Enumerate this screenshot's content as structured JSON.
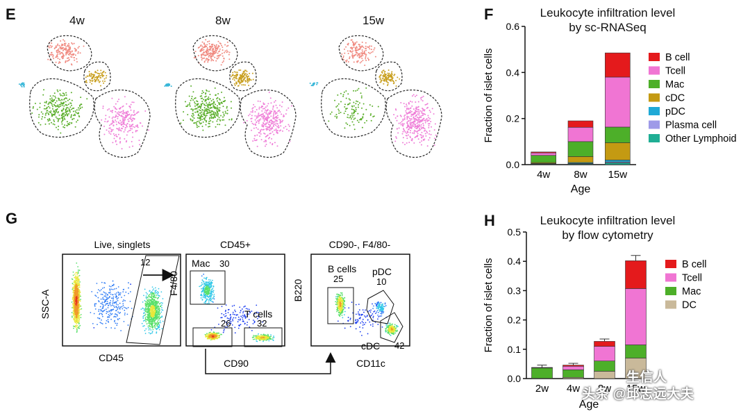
{
  "panels": {
    "E": {
      "letter": "E",
      "ages": [
        "4w",
        "8w",
        "15w"
      ]
    },
    "F": {
      "letter": "F",
      "title_line1": "Leukocyte infiltration level",
      "title_line2": "by sc-RNASeq"
    },
    "G": {
      "letter": "G",
      "gate1": {
        "title": "Live, singlets",
        "ylabel": "SSC-A",
        "xlabel": "CD45",
        "gate_value": "12"
      },
      "gate2": {
        "title": "CD45+",
        "ylabel": "F4/80",
        "xlabel": "CD90",
        "mac_label": "Mac",
        "mac_value": "30",
        "tcell_label": "T cells",
        "tcell_value": "32",
        "other_value": "26"
      },
      "gate3": {
        "title": "CD90-, F4/80-",
        "ylabel": "B220",
        "xlabel": "CD11c",
        "bcell_label": "B cells",
        "bcell_value": "25",
        "pdc_label": "pDC",
        "pdc_value": "10",
        "cdc_label": "cDC",
        "cdc_value": "42"
      }
    },
    "H": {
      "letter": "H",
      "title_line1": "Leukocyte infiltration level",
      "title_line2": "by flow cytometry"
    }
  },
  "colors": {
    "b_cell": "#e41a1c",
    "t_cell": "#f075d3",
    "mac": "#4daf29",
    "cdc": "#c49a12",
    "pdc": "#1fa9d6",
    "plasma": "#9e9ae8",
    "other_lymphoid": "#1fae94",
    "dc": "#c9b99a",
    "tsne_salmon": "#f08a80",
    "tsne_gold": "#c9a021",
    "tsne_green": "#5aae2a",
    "tsne_pink": "#ef7fd8",
    "tsne_cyan": "#37b6d8"
  },
  "chart_data": [
    {
      "id": "F",
      "type": "bar",
      "stacked": true,
      "title": "Leukocyte infiltration level by sc-RNASeq",
      "xlabel": "Age",
      "ylabel": "Fraction of islet cells",
      "categories": [
        "4w",
        "8w",
        "15w"
      ],
      "ylim": [
        0,
        0.6
      ],
      "yticks": [
        "0.0",
        "0.2",
        "0.4",
        "0.6"
      ],
      "legend_position": "right",
      "series": [
        {
          "name": "Other Lymphoid",
          "color_key": "other_lymphoid",
          "values": [
            0.002,
            0.003,
            0.008
          ]
        },
        {
          "name": "Plasma cell",
          "color_key": "plasma",
          "values": [
            0.001,
            0.002,
            0.004
          ]
        },
        {
          "name": "pDC",
          "color_key": "pdc",
          "values": [
            0.002,
            0.004,
            0.008
          ]
        },
        {
          "name": "cDC",
          "color_key": "cdc",
          "values": [
            0.004,
            0.026,
            0.075
          ]
        },
        {
          "name": "Mac",
          "color_key": "mac",
          "values": [
            0.031,
            0.065,
            0.068
          ]
        },
        {
          "name": "Tcell",
          "color_key": "t_cell",
          "values": [
            0.011,
            0.062,
            0.217
          ]
        },
        {
          "name": "B cell",
          "color_key": "b_cell",
          "values": [
            0.004,
            0.028,
            0.105
          ]
        }
      ],
      "legend_order": [
        "B cell",
        "Tcell",
        "Mac",
        "cDC",
        "pDC",
        "Plasma cell",
        "Other Lymphoid"
      ]
    },
    {
      "id": "H",
      "type": "bar",
      "stacked": true,
      "title": "Leukocyte infiltration level by flow cytometry",
      "xlabel": "Age",
      "ylabel": "Fraction of islet cells",
      "categories": [
        "2w",
        "4w",
        "8w",
        "15w"
      ],
      "ylim": [
        0,
        0.5
      ],
      "yticks": [
        "0.0",
        "0.1",
        "0.2",
        "0.3",
        "0.4",
        "0.5"
      ],
      "legend_position": "right",
      "series": [
        {
          "name": "DC",
          "color_key": "dc",
          "values": [
            0.001,
            0.004,
            0.025,
            0.07
          ]
        },
        {
          "name": "Mac",
          "color_key": "mac",
          "values": [
            0.035,
            0.026,
            0.035,
            0.045
          ]
        },
        {
          "name": "Tcell",
          "color_key": "t_cell",
          "values": [
            0.001,
            0.012,
            0.05,
            0.192
          ]
        },
        {
          "name": "B cell",
          "color_key": "b_cell",
          "values": [
            0.001,
            0.004,
            0.017,
            0.095
          ]
        }
      ],
      "error_tops": [
        0.046,
        0.052,
        0.135,
        0.42
      ],
      "legend_order": [
        "B cell",
        "Tcell",
        "Mac",
        "DC"
      ]
    }
  ],
  "watermark": {
    "text1": "头条 @邱志远大夫",
    "text2": "生信人"
  }
}
